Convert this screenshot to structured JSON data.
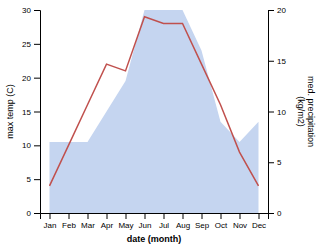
{
  "chart_data": {
    "type": "line",
    "xlabel": "date (month)",
    "ylabel": "max temp (C)",
    "y2label": "med. precipitation\n(kg/m2)",
    "categories": [
      "Jan",
      "Feb",
      "Mar",
      "Apr",
      "May",
      "Jun",
      "Jul",
      "Aug",
      "Sep",
      "Oct",
      "Nov",
      "Dec"
    ],
    "series": [
      {
        "type": "area",
        "axis": "y2",
        "color": "#c5d5f0",
        "values": [
          7,
          7,
          7,
          10,
          13,
          20,
          20,
          20,
          16,
          9,
          7,
          9
        ]
      },
      {
        "type": "line",
        "color": "#c0504d",
        "values": [
          4,
          10,
          16,
          22,
          21,
          29,
          28,
          28,
          22,
          16,
          9,
          4
        ]
      }
    ],
    "ylim": [
      0,
      30
    ],
    "yticks": [
      0,
      5,
      10,
      15,
      20,
      25,
      30
    ],
    "y2lim": [
      0,
      20
    ],
    "y2ticks": [
      0,
      5,
      10,
      15,
      20
    ]
  }
}
